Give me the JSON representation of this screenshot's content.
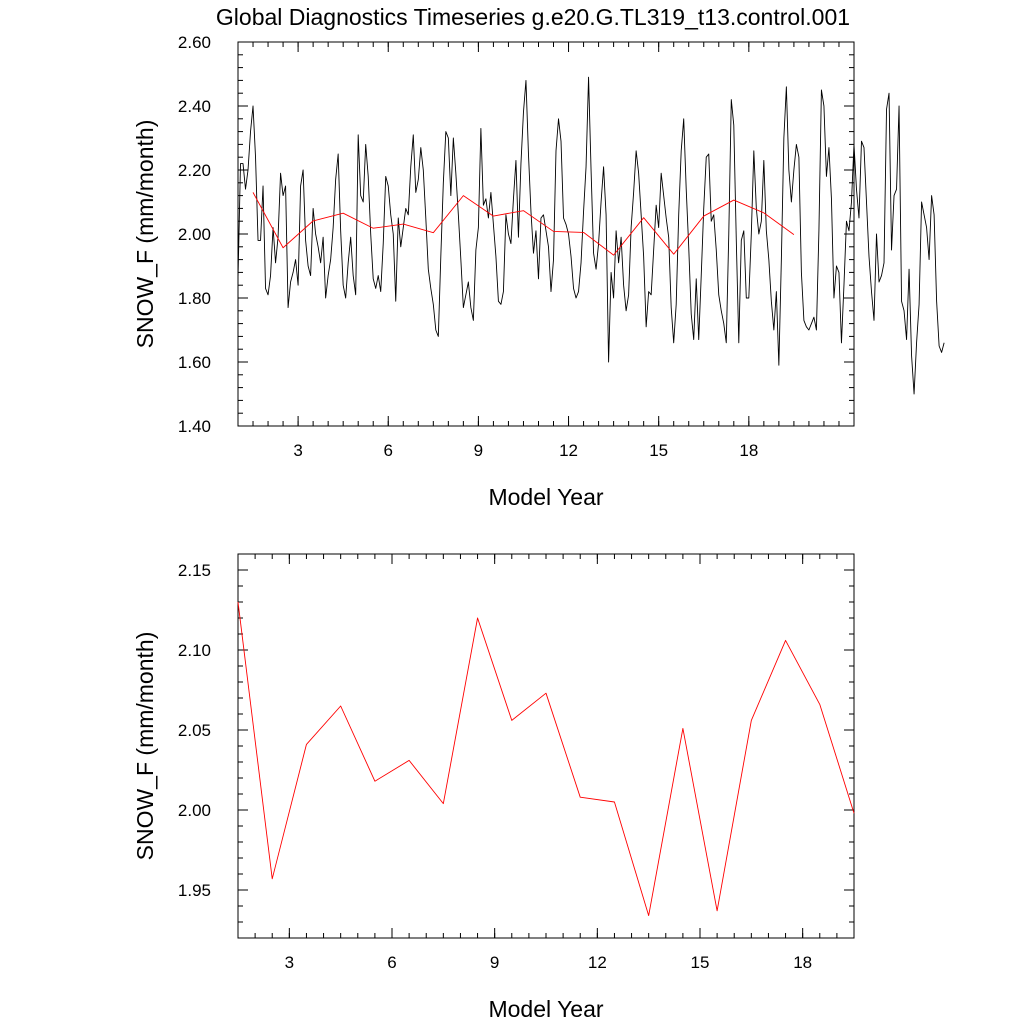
{
  "figure": {
    "title": "Global Diagnostics Timeseries g.e20.G.TL319_t13.control.001"
  },
  "chart_data": [
    {
      "type": "line",
      "xlabel": "Model Year",
      "ylabel": "SNOW_F (mm/month)",
      "xlim": [
        1,
        21.5
      ],
      "ylim": [
        1.4,
        2.6
      ],
      "x_ticks": [
        3,
        6,
        9,
        12,
        15,
        18
      ],
      "x_tick_labels": [
        "3",
        "6",
        "9",
        "12",
        "15",
        "18"
      ],
      "y_ticks": [
        1.4,
        1.6,
        1.8,
        2.0,
        2.2,
        2.4,
        2.6
      ],
      "y_tick_labels": [
        "1.40",
        "1.60",
        "1.80",
        "2.00",
        "2.20",
        "2.40",
        "2.60"
      ],
      "grid": false,
      "series": [
        {
          "color": "#000000",
          "x_start": 1.0,
          "x_step": 0.08333,
          "values": [
            1.86,
            2.22,
            2.22,
            2.14,
            2.2,
            2.32,
            2.4,
            2.24,
            1.98,
            1.98,
            2.15,
            1.83,
            1.81,
            1.87,
            2.02,
            1.91,
            1.99,
            2.19,
            2.12,
            2.15,
            1.77,
            1.85,
            1.88,
            1.92,
            1.84,
            2.15,
            2.2,
            1.98,
            1.9,
            1.87,
            2.08,
            2.0,
            1.96,
            1.91,
            1.99,
            1.8,
            1.87,
            1.92,
            2.02,
            2.17,
            2.25,
            2.01,
            1.84,
            1.8,
            1.91,
            1.99,
            1.87,
            1.81,
            2.31,
            2.12,
            2.1,
            2.28,
            2.18,
            2.0,
            1.86,
            1.83,
            1.87,
            1.82,
            1.97,
            2.18,
            2.15,
            2.06,
            2.0,
            1.79,
            2.05,
            1.96,
            2.02,
            2.08,
            2.06,
            2.21,
            2.31,
            2.13,
            2.17,
            2.27,
            2.2,
            2.05,
            1.89,
            1.83,
            1.78,
            1.7,
            1.68,
            1.93,
            2.16,
            2.32,
            2.3,
            2.12,
            2.3,
            2.19,
            2.06,
            1.92,
            1.77,
            1.81,
            1.85,
            1.77,
            1.73,
            1.95,
            2.02,
            2.33,
            2.09,
            2.11,
            2.05,
            2.13,
            2.03,
            1.93,
            1.79,
            1.78,
            1.82,
            2.06,
            2.0,
            1.97,
            2.11,
            2.23,
            1.99,
            2.22,
            2.38,
            2.48,
            2.25,
            2.07,
            1.94,
            2.01,
            1.86,
            2.05,
            2.06,
            2.01,
            1.96,
            1.82,
            1.92,
            2.26,
            2.36,
            2.29,
            2.05,
            2.03,
            2.0,
            1.93,
            1.83,
            1.8,
            1.82,
            1.91,
            2.07,
            2.21,
            2.49,
            2.2,
            1.94,
            1.89,
            1.97,
            2.1,
            2.21,
            2.06,
            1.6,
            1.88,
            1.8,
            2.01,
            1.91,
            1.99,
            1.84,
            1.76,
            1.81,
            2.02,
            2.13,
            2.26,
            2.19,
            2.06,
            1.93,
            1.71,
            1.82,
            1.81,
            1.95,
            2.09,
            2.02,
            2.19,
            2.12,
            2.05,
            1.99,
            1.77,
            1.66,
            1.78,
            2.06,
            2.26,
            2.36,
            2.14,
            1.96,
            1.75,
            1.67,
            1.86,
            1.67,
            1.87,
            2.08,
            2.24,
            2.25,
            2.04,
            2.06,
            1.95,
            1.81,
            1.76,
            1.72,
            1.66,
            2.0,
            2.42,
            2.34,
            1.98,
            1.66,
            1.98,
            2.01,
            1.8,
            1.8,
            2.0,
            2.26,
            2.08,
            2.0,
            2.04,
            2.23,
            2.01,
            1.92,
            1.79,
            1.7,
            1.82,
            1.59,
            1.92,
            2.3,
            2.46,
            2.2,
            2.1,
            2.2,
            2.28,
            2.24,
            1.88,
            1.73,
            1.71,
            1.7,
            1.72,
            1.74,
            1.7,
            2.01,
            2.45,
            2.4,
            2.18,
            2.27,
            2.11,
            1.8,
            1.9,
            1.88,
            1.66,
            1.84,
            2.04,
            2.01,
            2.1,
            2.28,
            2.14,
            2.05,
            2.29,
            2.27,
            2.1,
            1.93,
            1.82,
            1.73,
            2.0,
            1.85,
            1.87,
            1.91,
            2.39,
            2.44,
            1.95,
            2.12,
            2.14,
            2.4,
            1.79,
            1.76,
            1.67,
            1.89,
            1.62,
            1.5,
            1.66,
            1.78,
            2.1,
            2.06,
            2.02,
            1.92,
            2.12,
            2.06,
            1.79,
            1.65,
            1.63,
            1.66
          ]
        },
        {
          "color": "#ff0000",
          "x": [
            1.5,
            2.5,
            3.5,
            4.5,
            5.5,
            6.5,
            7.5,
            8.5,
            9.5,
            10.5,
            11.5,
            12.5,
            13.5,
            14.5,
            15.5,
            16.5,
            17.5,
            18.5,
            19.5
          ],
          "values": [
            2.13,
            1.957,
            2.041,
            2.065,
            2.018,
            2.031,
            2.004,
            2.12,
            2.056,
            2.073,
            2.008,
            2.005,
            1.934,
            2.051,
            1.937,
            2.056,
            2.106,
            2.066,
            1.998
          ]
        }
      ]
    },
    {
      "type": "line",
      "xlabel": "Model Year",
      "ylabel": "SNOW_F (mm/month)",
      "xlim": [
        1.5,
        19.5
      ],
      "ylim": [
        1.92,
        2.16
      ],
      "x_ticks": [
        3,
        6,
        9,
        12,
        15,
        18
      ],
      "x_tick_labels": [
        "3",
        "6",
        "9",
        "12",
        "15",
        "18"
      ],
      "y_ticks": [
        1.95,
        2.0,
        2.05,
        2.1,
        2.15
      ],
      "y_tick_labels": [
        "1.95",
        "2.00",
        "2.05",
        "2.10",
        "2.15"
      ],
      "grid": false,
      "series": [
        {
          "color": "#ff0000",
          "x": [
            1.5,
            2.5,
            3.5,
            4.5,
            5.5,
            6.5,
            7.5,
            8.5,
            9.5,
            10.5,
            11.5,
            12.5,
            13.5,
            14.5,
            15.5,
            16.5,
            17.5,
            18.5,
            19.5
          ],
          "values": [
            2.13,
            1.957,
            2.041,
            2.065,
            2.018,
            2.031,
            2.004,
            2.12,
            2.056,
            2.073,
            2.008,
            2.005,
            1.934,
            2.051,
            1.937,
            2.056,
            2.106,
            2.066,
            1.998
          ]
        }
      ]
    }
  ]
}
